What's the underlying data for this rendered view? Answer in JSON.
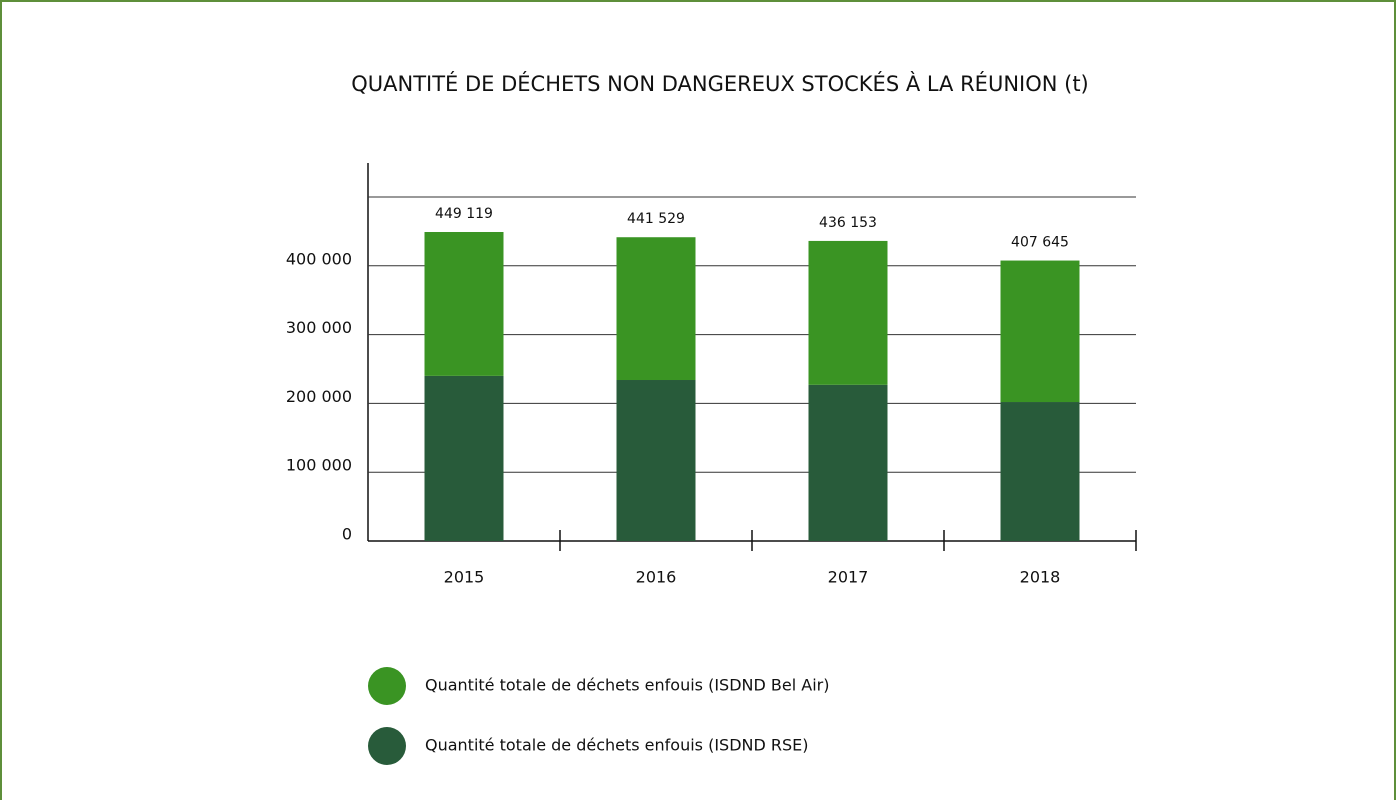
{
  "chart_data": {
    "type": "stacked_bar",
    "title": "QUANTITÉ DE DÉCHETS NON DANGEREUX STOCKÉS À LA RÉUNION (t)",
    "categories": [
      "2015",
      "2016",
      "2017",
      "2018"
    ],
    "series": [
      {
        "name": "Quantité totale de déchets enfouis (ISDND Bel Air)",
        "color": "#3a9423",
        "values": [
          209119,
          207529,
          209153,
          205645
        ]
      },
      {
        "name": "Quantité totale de déchets enfouis (ISDND RSE)",
        "color": "#285b3a",
        "values": [
          240000,
          234000,
          227000,
          202000
        ]
      }
    ],
    "totals": [
      449119,
      441529,
      436153,
      407645
    ],
    "total_labels": [
      "449 119",
      "441 529",
      "436 153",
      "407 645"
    ],
    "ylim": [
      0,
      500000
    ],
    "yticks": [
      0,
      {
        "value": 100000,
        "label": "100 000"
      },
      {
        "value": 200000,
        "label": "200 000"
      },
      {
        "value": 300000,
        "label": "300 000"
      },
      {
        "value": 400000,
        "label": "400 000"
      }
    ],
    "grid": true,
    "legend": "bottom"
  }
}
